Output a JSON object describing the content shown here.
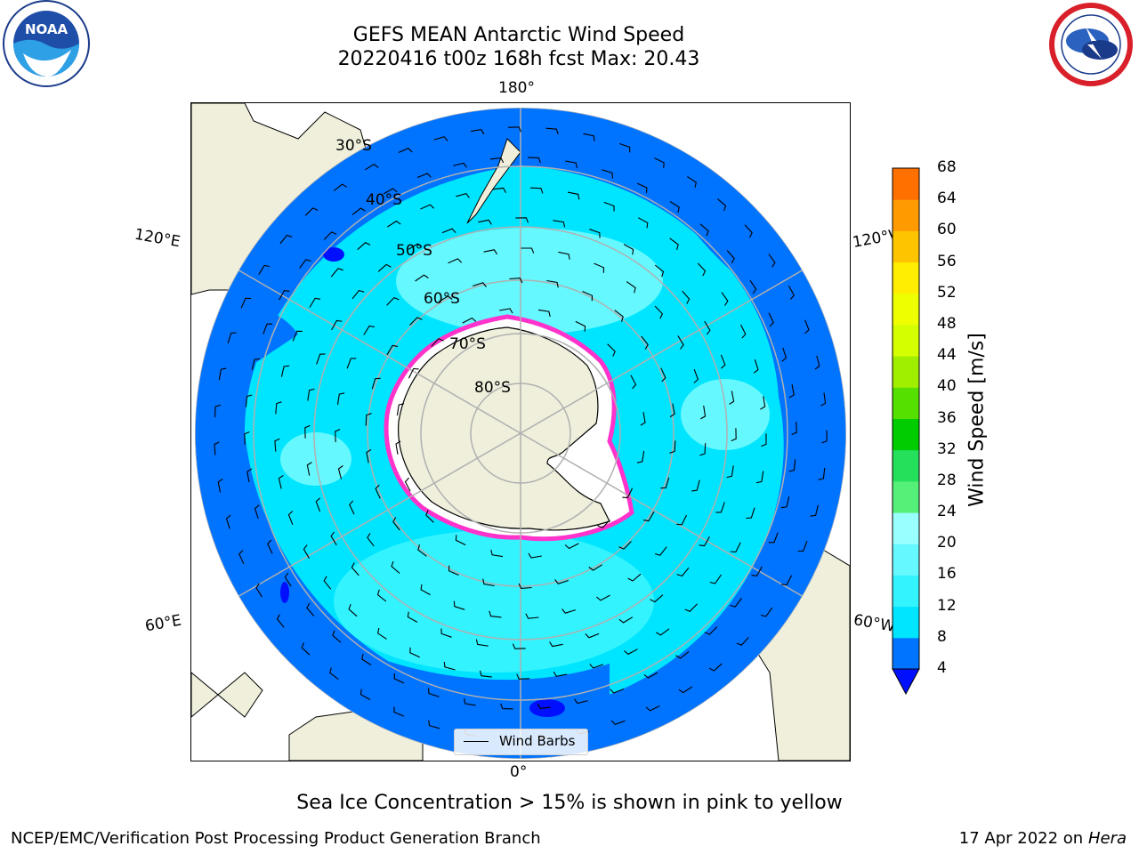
{
  "title": {
    "line1": "GEFS MEAN Antarctic Wind Speed",
    "line2": "20220416 t00z 168h fcst   Max: 20.43"
  },
  "caption": "Sea Ice Concentration > 15% is shown in pink to yellow",
  "footer": {
    "left": "NCEP/EMC/Verification Post Processing Product Generation Branch",
    "date": "17 Apr 2022 on ",
    "machine": "Hera"
  },
  "map": {
    "projection": "south polar stereographic",
    "longitude_labels": [
      "180°",
      "120°E",
      "120°W",
      "60°E",
      "60°W",
      "0°"
    ],
    "latitude_labels": [
      "30°S",
      "40°S",
      "50°S",
      "60°S",
      "70°S",
      "80°S"
    ],
    "legend_label": "Wind Barbs"
  },
  "colorbar": {
    "label": "Wind Speed [m/s]",
    "ticks": [
      "4",
      "8",
      "12",
      "16",
      "20",
      "24",
      "28",
      "32",
      "36",
      "40",
      "44",
      "48",
      "52",
      "56",
      "60",
      "64",
      "68"
    ],
    "colors": [
      "#0073ff",
      "#00e5ff",
      "#33f3ff",
      "#66f8ff",
      "#99ffff",
      "#55f077",
      "#25e05a",
      "#00cc00",
      "#55e000",
      "#a0ee00",
      "#d4ff00",
      "#eeff00",
      "#ffee00",
      "#ffc400",
      "#ff9a00",
      "#ff7000",
      "#ff4500",
      "#ff1a00"
    ],
    "under_color": "#0010ff"
  },
  "logos": {
    "noaa": "NOAA",
    "nws": "NATIONAL WEATHER SERVICE"
  },
  "colors": {
    "land": "#efefdc",
    "ocean_low": "#0073ff",
    "ocean_mid": "#00e5ff",
    "sea_ice_edge": "#ff33cc"
  }
}
